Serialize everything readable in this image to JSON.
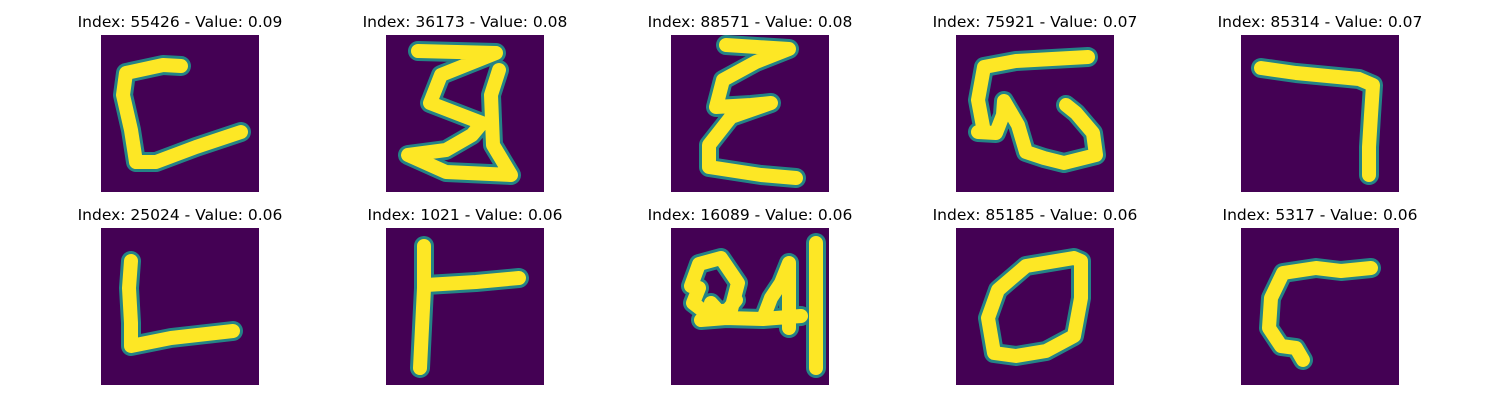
{
  "chart_data": {
    "type": "image-grid",
    "colormap": "viridis",
    "background_color": "#440154",
    "stroke_color": "#fde725",
    "edge_color": "#21918c",
    "panels": [
      {
        "title": "Index: 55426 - Value: 0.09",
        "index": 55426,
        "value": 0.09,
        "glyph": "stroke-c-open"
      },
      {
        "title": "Index: 36173 - Value: 0.08",
        "index": 36173,
        "value": 0.08,
        "glyph": "stroke-3-zigzag"
      },
      {
        "title": "Index: 88571 - Value: 0.08",
        "index": 88571,
        "value": 0.08,
        "glyph": "stroke-epsilon"
      },
      {
        "title": "Index: 75921 - Value: 0.07",
        "index": 75921,
        "value": 0.07,
        "glyph": "stroke-w-loop"
      },
      {
        "title": "Index: 85314 - Value: 0.07",
        "index": 85314,
        "value": 0.07,
        "glyph": "stroke-seven-corner"
      },
      {
        "title": "Index: 25024 - Value: 0.06",
        "index": 25024,
        "value": 0.06,
        "glyph": "stroke-l"
      },
      {
        "title": "Index: 1021 - Value: 0.06",
        "index": 1021,
        "value": 0.06,
        "glyph": "stroke-t-side"
      },
      {
        "title": "Index: 16089 - Value: 0.06",
        "index": 16089,
        "value": 0.06,
        "glyph": "stroke-scribble"
      },
      {
        "title": "Index: 85185 - Value: 0.06",
        "index": 85185,
        "value": 0.06,
        "glyph": "stroke-o"
      },
      {
        "title": "Index: 5317 - Value: 0.06",
        "index": 5317,
        "value": 0.06,
        "glyph": "stroke-hook"
      }
    ]
  }
}
